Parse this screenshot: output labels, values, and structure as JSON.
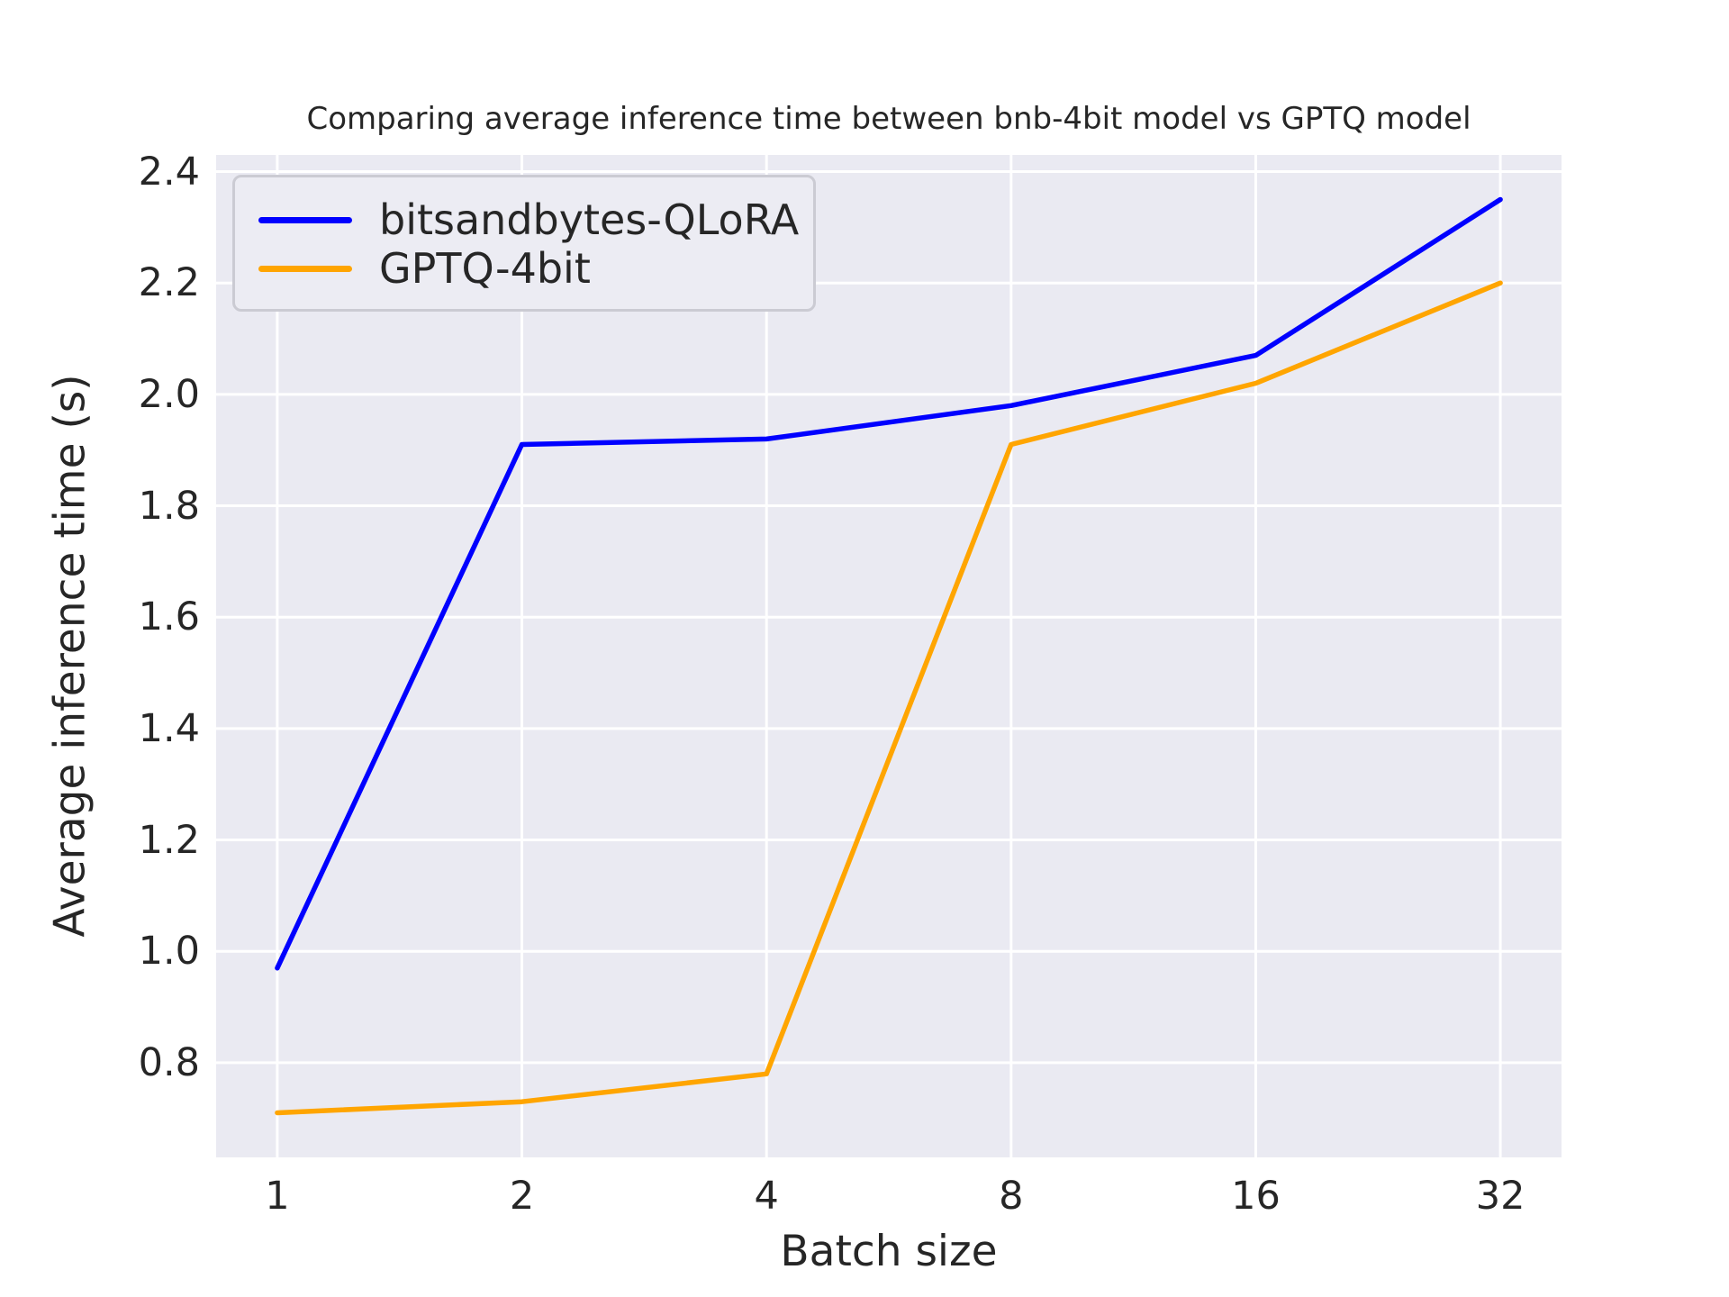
{
  "chart_data": {
    "type": "line",
    "title": "Comparing average inference time between bnb-4bit model vs GPTQ model",
    "xlabel": "Batch size",
    "ylabel": "Average inference time (s)",
    "categories": [
      "1",
      "2",
      "4",
      "8",
      "16",
      "32"
    ],
    "series": [
      {
        "name": "bitsandbytes-QLoRA",
        "color": "#0000ff",
        "values": [
          0.97,
          1.91,
          1.92,
          1.98,
          2.07,
          2.35
        ]
      },
      {
        "name": "GPTQ-4bit",
        "color": "#ffa500",
        "values": [
          0.71,
          0.73,
          0.78,
          1.91,
          2.02,
          2.2
        ]
      }
    ],
    "ylim": [
      0.63,
      2.43
    ],
    "yticks": {
      "values": [
        0.8,
        1.0,
        1.2,
        1.4,
        1.6,
        1.8,
        2.0,
        2.2,
        2.4
      ],
      "labels": [
        "0.8",
        "1.0",
        "1.2",
        "1.4",
        "1.6",
        "1.8",
        "2.0",
        "2.2",
        "2.4"
      ]
    },
    "grid": true,
    "legend_position": "upper left",
    "colors": {
      "figure_bg": "#ffffff",
      "plot_bg": "#eaeaf2",
      "grid": "#ffffff",
      "text": "#262626",
      "legend_bg": "#ececf3",
      "legend_border": "#cbcbd3"
    }
  }
}
